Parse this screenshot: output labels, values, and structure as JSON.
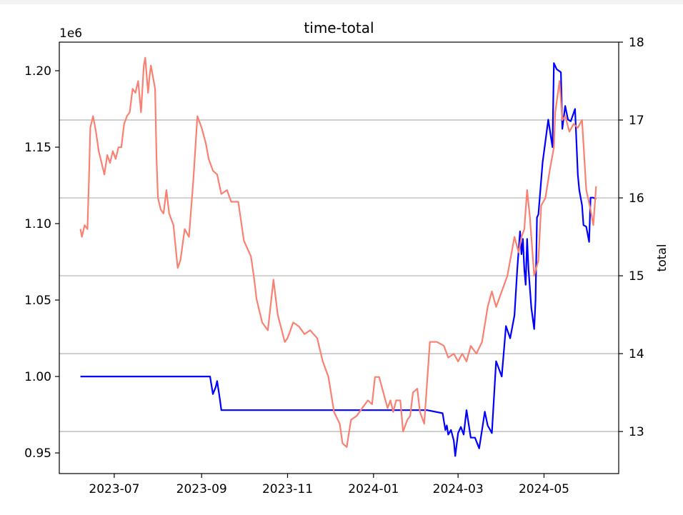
{
  "chart_data": {
    "type": "line",
    "title": "time-total",
    "xlabel": "",
    "ylabel_left": "",
    "ylabel_right": "total",
    "left_offset_label": "1e6",
    "x_ticks": [
      "2023-07",
      "2023-09",
      "2023-11",
      "2024-01",
      "2024-03",
      "2024-05"
    ],
    "x_range": [
      "2023-05-23",
      "2024-06-23"
    ],
    "y_left_range": [
      0.9365,
      1.2187
    ],
    "y_left_ticks": [
      "0.95",
      "1.00",
      "1.05",
      "1.10",
      "1.15",
      "1.20"
    ],
    "y_left_tick_values": [
      0.95,
      1.0,
      1.05,
      1.1,
      1.15,
      1.2
    ],
    "y_right_range": [
      12.46,
      18.0
    ],
    "y_right_ticks": [
      "13",
      "14",
      "15",
      "16",
      "17",
      "18"
    ],
    "y_right_tick_values": [
      13,
      14,
      15,
      16,
      17,
      18
    ],
    "grid": "horizontal lines at right-axis ticks",
    "legend": "none",
    "series": [
      {
        "axis": "left",
        "color": "#0000ff",
        "x": [
          "2023-06-07",
          "2023-09-07",
          "2023-09-09",
          "2023-09-11",
          "2023-09-12",
          "2023-09-13",
          "2023-09-14",
          "2023-09-15",
          "2023-10-01",
          "2023-11-01",
          "2023-12-01",
          "2024-01-01",
          "2024-02-08",
          "2024-02-19",
          "2024-02-21",
          "2024-02-22",
          "2024-02-23",
          "2024-02-25",
          "2024-02-27",
          "2024-02-28",
          "2024-03-01",
          "2024-03-03",
          "2024-03-05",
          "2024-03-07",
          "2024-03-10",
          "2024-03-13",
          "2024-03-16",
          "2024-03-18",
          "2024-03-20",
          "2024-03-22",
          "2024-03-25",
          "2024-03-28",
          "2024-04-01",
          "2024-04-04",
          "2024-04-07",
          "2024-04-10",
          "2024-04-12",
          "2024-04-14",
          "2024-04-15",
          "2024-04-16",
          "2024-04-17",
          "2024-04-18",
          "2024-04-19",
          "2024-04-20",
          "2024-04-22",
          "2024-04-24",
          "2024-04-25",
          "2024-04-26",
          "2024-04-27",
          "2024-04-30",
          "2024-05-04",
          "2024-05-07",
          "2024-05-08",
          "2024-05-10",
          "2024-05-13",
          "2024-05-14",
          "2024-05-16",
          "2024-05-18",
          "2024-05-20",
          "2024-05-23",
          "2024-05-25",
          "2024-05-26",
          "2024-05-28",
          "2024-05-29",
          "2024-05-31",
          "2024-06-02",
          "2024-06-03",
          "2024-06-05",
          "2024-06-07"
        ],
        "values": [
          1.0,
          1.0,
          0.9885,
          0.993,
          0.997,
          0.991,
          0.985,
          0.978,
          0.978,
          0.978,
          0.978,
          0.978,
          0.978,
          0.976,
          0.965,
          0.968,
          0.962,
          0.965,
          0.958,
          0.948,
          0.963,
          0.967,
          0.962,
          0.978,
          0.96,
          0.96,
          0.953,
          0.965,
          0.977,
          0.968,
          0.963,
          1.01,
          1.0,
          1.033,
          1.025,
          1.04,
          1.07,
          1.095,
          1.08,
          1.09,
          1.07,
          1.06,
          1.09,
          1.07,
          1.045,
          1.031,
          1.05,
          1.104,
          1.106,
          1.14,
          1.168,
          1.15,
          1.205,
          1.201,
          1.199,
          1.162,
          1.177,
          1.168,
          1.167,
          1.175,
          1.132,
          1.122,
          1.112,
          1.099,
          1.098,
          1.088,
          1.117,
          1.117,
          1.116
        ]
      },
      {
        "axis": "right",
        "color": "#fa8072",
        "x": [
          "2023-06-07",
          "2023-06-08",
          "2023-06-10",
          "2023-06-12",
          "2023-06-13",
          "2023-06-14",
          "2023-06-16",
          "2023-06-18",
          "2023-06-20",
          "2023-06-22",
          "2023-06-24",
          "2023-06-26",
          "2023-06-28",
          "2023-06-30",
          "2023-07-02",
          "2023-07-04",
          "2023-07-06",
          "2023-07-08",
          "2023-07-10",
          "2023-07-12",
          "2023-07-14",
          "2023-07-16",
          "2023-07-18",
          "2023-07-20",
          "2023-07-22",
          "2023-07-23",
          "2023-07-25",
          "2023-07-26",
          "2023-07-27",
          "2023-07-28",
          "2023-07-30",
          "2023-07-31",
          "2023-08-01",
          "2023-08-03",
          "2023-08-05",
          "2023-08-07",
          "2023-08-09",
          "2023-08-12",
          "2023-08-15",
          "2023-08-17",
          "2023-08-20",
          "2023-08-23",
          "2023-08-26",
          "2023-08-29",
          "2023-09-01",
          "2023-09-04",
          "2023-09-06",
          "2023-09-09",
          "2023-09-12",
          "2023-09-15",
          "2023-09-19",
          "2023-09-22",
          "2023-09-24",
          "2023-09-27",
          "2023-10-01",
          "2023-10-06",
          "2023-10-08",
          "2023-10-10",
          "2023-10-14",
          "2023-10-18",
          "2023-10-22",
          "2023-10-25",
          "2023-10-30",
          "2023-11-01",
          "2023-11-05",
          "2023-11-09",
          "2023-11-13",
          "2023-11-17",
          "2023-11-22",
          "2023-11-26",
          "2023-11-30",
          "2023-12-04",
          "2023-12-08",
          "2023-12-10",
          "2023-12-13",
          "2023-12-16",
          "2023-12-20",
          "2023-12-24",
          "2023-12-28",
          "2023-12-31",
          "2024-01-02",
          "2024-01-05",
          "2024-01-08",
          "2024-01-11",
          "2024-01-13",
          "2024-01-15",
          "2024-01-17",
          "2024-01-20",
          "2024-01-22",
          "2024-01-25",
          "2024-01-27",
          "2024-01-29",
          "2024-02-01",
          "2024-02-03",
          "2024-02-06",
          "2024-02-10",
          "2024-02-15",
          "2024-02-20",
          "2024-02-23",
          "2024-02-27",
          "2024-03-01",
          "2024-03-04",
          "2024-03-07",
          "2024-03-10",
          "2024-03-14",
          "2024-03-18",
          "2024-03-22",
          "2024-03-25",
          "2024-03-28",
          "2024-04-01",
          "2024-04-05",
          "2024-04-10",
          "2024-04-13",
          "2024-04-15",
          "2024-04-17",
          "2024-04-19",
          "2024-04-21",
          "2024-04-24",
          "2024-04-27",
          "2024-04-29",
          "2024-05-02",
          "2024-05-05",
          "2024-05-08",
          "2024-05-09",
          "2024-05-12",
          "2024-05-14",
          "2024-05-16",
          "2024-05-19",
          "2024-05-22",
          "2024-05-25",
          "2024-05-28",
          "2024-05-31",
          "2024-06-03",
          "2024-06-05",
          "2024-06-07"
        ],
        "values": [
          15.6,
          15.5,
          15.65,
          15.6,
          16.2,
          16.9,
          17.05,
          16.85,
          16.6,
          16.45,
          16.3,
          16.55,
          16.45,
          16.6,
          16.5,
          16.65,
          16.65,
          16.95,
          17.05,
          17.1,
          17.4,
          17.35,
          17.5,
          17.1,
          17.7,
          17.8,
          17.35,
          17.55,
          17.7,
          17.6,
          17.4,
          16.5,
          16.0,
          15.85,
          15.8,
          16.1,
          15.8,
          15.65,
          15.1,
          15.2,
          15.6,
          15.5,
          16.2,
          17.05,
          16.9,
          16.7,
          16.5,
          16.35,
          16.3,
          16.05,
          16.1,
          15.95,
          15.95,
          15.95,
          15.45,
          15.25,
          15.0,
          14.7,
          14.4,
          14.3,
          14.95,
          14.5,
          14.15,
          14.2,
          14.4,
          14.35,
          14.25,
          14.3,
          14.2,
          13.9,
          13.7,
          13.25,
          13.1,
          12.85,
          12.8,
          13.15,
          13.2,
          13.3,
          13.4,
          13.35,
          13.7,
          13.7,
          13.5,
          13.3,
          13.4,
          13.25,
          13.4,
          13.4,
          13.0,
          13.15,
          13.2,
          13.5,
          13.55,
          13.25,
          13.1,
          14.15,
          14.15,
          14.1,
          13.95,
          14.0,
          13.9,
          14.0,
          13.9,
          14.1,
          14.0,
          14.15,
          14.6,
          14.8,
          14.6,
          14.8,
          15.0,
          15.5,
          15.3,
          15.5,
          15.6,
          16.1,
          15.75,
          15.0,
          15.2,
          15.9,
          16.0,
          16.35,
          16.65,
          17.1,
          17.5,
          17.0,
          17.05,
          16.85,
          16.95,
          16.9,
          17.0,
          16.1,
          15.85,
          15.65,
          16.15
        ]
      }
    ]
  }
}
